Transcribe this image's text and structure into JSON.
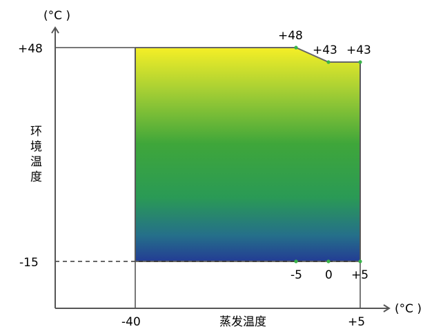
{
  "chart_data": {
    "type": "area",
    "x_unit": "(°C )",
    "y_unit": "(°C )",
    "xlabel": "蒸发温度",
    "ylabel": "环境温度",
    "y_ticks": [
      "+48",
      "-15"
    ],
    "x_ticks": [
      "-40",
      "+5"
    ],
    "envelope": [
      {
        "x": -40,
        "y": 48
      },
      {
        "x": -5,
        "y": 48
      },
      {
        "x": 0,
        "y": 43
      },
      {
        "x": 5,
        "y": 43
      },
      {
        "x": 5,
        "y": -15
      },
      {
        "x": -40,
        "y": -15
      }
    ],
    "point_labels_top": [
      {
        "x": -5,
        "y": 48,
        "label": "+48"
      },
      {
        "x": 0,
        "y": 43,
        "label": "+43"
      },
      {
        "x": 5,
        "y": 43,
        "label": "+43"
      }
    ],
    "point_labels_bottom": [
      {
        "x": -5,
        "y": -15,
        "label": "-5"
      },
      {
        "x": 0,
        "y": -15,
        "label": "0"
      },
      {
        "x": 5,
        "y": -15,
        "label": "+5"
      }
    ],
    "colors": {
      "top": "#f2ec2a",
      "middle": "#3aa33c",
      "bottom": "#233f92",
      "point": "#39b54a",
      "axis": "#555555"
    }
  }
}
